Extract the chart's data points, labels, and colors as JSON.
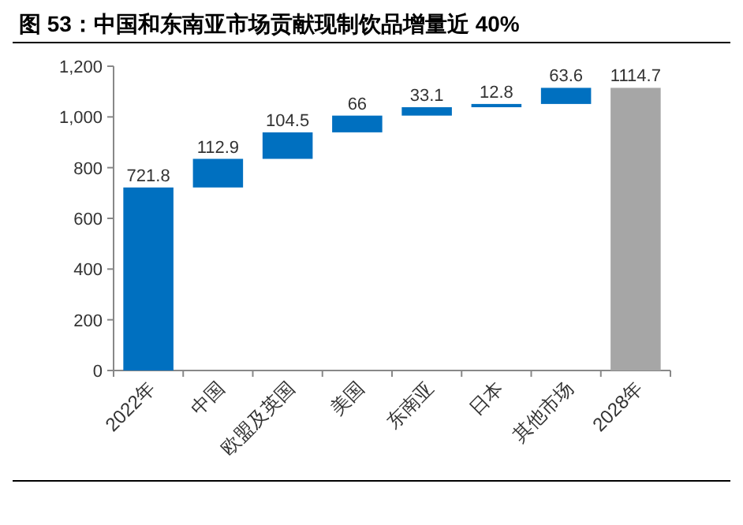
{
  "chart_data": {
    "type": "bar",
    "title": "图 53：中国和东南亚市场贡献现制饮品增量近 40%",
    "categories": [
      "2022年",
      "中国",
      "欧盟及英国",
      "美国",
      "东南亚",
      "日本",
      "其他市场",
      "2028年"
    ],
    "values": [
      721.8,
      112.9,
      104.5,
      66,
      33.1,
      12.8,
      63.6,
      1114.7
    ],
    "base": [
      0,
      721.8,
      834.7,
      939.2,
      1005.2,
      1038.3,
      1051.1,
      0
    ],
    "colors": [
      "#0070c0",
      "#0070c0",
      "#0070c0",
      "#0070c0",
      "#0070c0",
      "#0070c0",
      "#0070c0",
      "#a6a6a6"
    ],
    "value_labels": [
      "721.8",
      "112.9",
      "104.5",
      "66",
      "33.1",
      "12.8",
      "63.6",
      "1114.7"
    ],
    "ylim": [
      0,
      1200
    ],
    "yticks": [
      {
        "value": 0,
        "label": "0"
      },
      {
        "value": 200,
        "label": "200"
      },
      {
        "value": 400,
        "label": "400"
      },
      {
        "value": 600,
        "label": "600"
      },
      {
        "value": 800,
        "label": "800"
      },
      {
        "value": 1000,
        "label": "1,000"
      },
      {
        "value": 1200,
        "label": "1,200"
      }
    ]
  }
}
